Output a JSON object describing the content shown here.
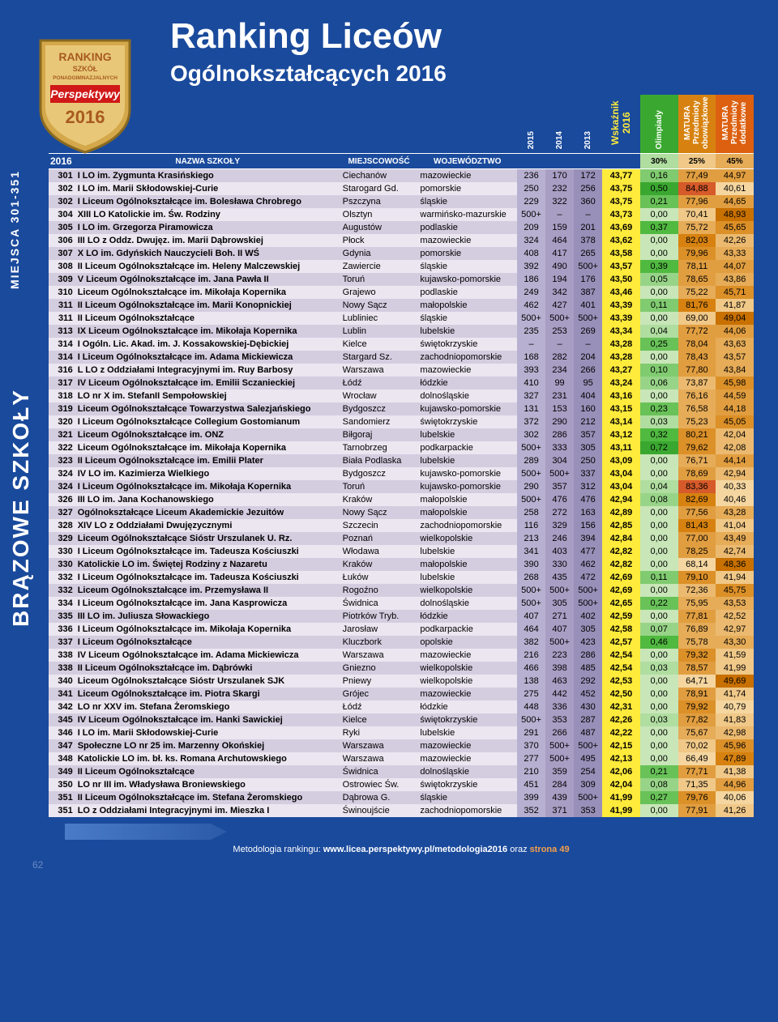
{
  "title": "Ranking Liceów",
  "subtitle": "Ogólnokształcących 2016",
  "sideLabel1": "MIEJSCA 301-351",
  "sideLabel2": "BRĄZOWE SZKOŁY",
  "badge": {
    "line1": "RANKING",
    "line2": "SZKÓŁ",
    "line3": "PONADGIMNAZJALNYCH",
    "brand": "Perspektywy",
    "year": "2016"
  },
  "footer": {
    "text": "Metodologia rankingu: ",
    "link": "www.licea.perspektywy.pl/metodologia2016",
    "tail": " oraz ",
    "page": "strona 49"
  },
  "pageNum": "62",
  "columns": {
    "year": "2016",
    "name": "NAZWA SZKOŁY",
    "city": "MIEJSCOWOŚĆ",
    "region": "WOJEWÓDZTWO",
    "y2015": "2015",
    "y2014": "2014",
    "y2013": "2013",
    "ws": "Wskaźnik 2016",
    "ol": "Olimpiady",
    "m1": "MATURA Przedmioty obowiązkowe",
    "m2": "MATURA Przedmioty dodatkowe",
    "olPct": "30%",
    "m1Pct": "25%",
    "m2Pct": "45%"
  },
  "colors": {
    "rowEven": "#d4cde0",
    "rowOdd": "#ebe6f0",
    "hist": [
      "#b8b0d0",
      "#a89ec4",
      "#9890b8"
    ],
    "ws": "#ffeb3b",
    "greenScale": [
      "#c8e6b8",
      "#b0dda0",
      "#98d488",
      "#80cb70",
      "#68c258",
      "#50b940",
      "#3aa830"
    ],
    "orangeScale": [
      "#f5d6a0",
      "#f0c888",
      "#ebba70",
      "#e6ac58",
      "#e19e40",
      "#dc9028",
      "#d78210",
      "#c87000"
    ],
    "redHigh": "#d65a2a"
  },
  "rows": [
    {
      "r": "301",
      "name": "I LO im. Zygmunta Krasińskiego",
      "city": "Ciechanów",
      "reg": "mazowieckie",
      "y15": "236",
      "y14": "170",
      "y13": "172",
      "ws": "43,77",
      "ol": "0,16",
      "m1": "77,49",
      "m2": "44,97"
    },
    {
      "r": "302",
      "name": "I LO im. Marii Skłodowskiej-Curie",
      "city": "Starogard Gd.",
      "reg": "pomorskie",
      "y15": "250",
      "y14": "232",
      "y13": "256",
      "ws": "43,75",
      "ol": "0,50",
      "m1": "84,88",
      "m2": "40,61"
    },
    {
      "r": "302",
      "name": "I Liceum Ogólnokształcące im. Bolesława Chrobrego",
      "city": "Pszczyna",
      "reg": "śląskie",
      "y15": "229",
      "y14": "322",
      "y13": "360",
      "ws": "43,75",
      "ol": "0,21",
      "m1": "77,96",
      "m2": "44,65"
    },
    {
      "r": "304",
      "name": "XIII LO Katolickie im. Św. Rodziny",
      "city": "Olsztyn",
      "reg": "warmińsko-mazurskie",
      "y15": "500+",
      "y14": "–",
      "y13": "–",
      "ws": "43,73",
      "ol": "0,00",
      "m1": "70,41",
      "m2": "48,93"
    },
    {
      "r": "305",
      "name": "I LO im. Grzegorza Piramowicza",
      "city": "Augustów",
      "reg": "podlaskie",
      "y15": "209",
      "y14": "159",
      "y13": "201",
      "ws": "43,69",
      "ol": "0,37",
      "m1": "75,72",
      "m2": "45,65"
    },
    {
      "r": "306",
      "name": "III LO z Oddz. Dwujęz. im. Marii Dąbrowskiej",
      "city": "Płock",
      "reg": "mazowieckie",
      "y15": "324",
      "y14": "464",
      "y13": "378",
      "ws": "43,62",
      "ol": "0,00",
      "m1": "82,03",
      "m2": "42,26"
    },
    {
      "r": "307",
      "name": "X LO im. Gdyńskich Nauczycieli Boh. II WŚ",
      "city": "Gdynia",
      "reg": "pomorskie",
      "y15": "408",
      "y14": "417",
      "y13": "265",
      "ws": "43,58",
      "ol": "0,00",
      "m1": "79,96",
      "m2": "43,33"
    },
    {
      "r": "308",
      "name": "II Liceum Ogólnokształcące im. Heleny Malczewskiej",
      "city": "Zawiercie",
      "reg": "śląskie",
      "y15": "392",
      "y14": "490",
      "y13": "500+",
      "ws": "43,57",
      "ol": "0,39",
      "m1": "78,11",
      "m2": "44,07"
    },
    {
      "r": "309",
      "name": "V Liceum Ogólnokształcące im. Jana Pawła II",
      "city": "Toruń",
      "reg": "kujawsko-pomorskie",
      "y15": "186",
      "y14": "194",
      "y13": "176",
      "ws": "43,50",
      "ol": "0,05",
      "m1": "78,65",
      "m2": "43,86"
    },
    {
      "r": "310",
      "name": "Liceum Ogólnokształcące im. Mikołaja Kopernika",
      "city": "Grajewo",
      "reg": "podlaskie",
      "y15": "249",
      "y14": "342",
      "y13": "387",
      "ws": "43,46",
      "ol": "0,00",
      "m1": "75,22",
      "m2": "45,71"
    },
    {
      "r": "311",
      "name": "II Liceum Ogólnokształcące im. Marii Konopnickiej",
      "city": "Nowy Sącz",
      "reg": "małopolskie",
      "y15": "462",
      "y14": "427",
      "y13": "401",
      "ws": "43,39",
      "ol": "0,11",
      "m1": "81,76",
      "m2": "41,87"
    },
    {
      "r": "311",
      "name": "II Liceum Ogólnokształcące",
      "city": "Lubliniec",
      "reg": "śląskie",
      "y15": "500+",
      "y14": "500+",
      "y13": "500+",
      "ws": "43,39",
      "ol": "0,00",
      "m1": "69,00",
      "m2": "49,04"
    },
    {
      "r": "313",
      "name": "IX Liceum Ogólnokształcące im. Mikołaja Kopernika",
      "city": "Lublin",
      "reg": "lubelskie",
      "y15": "235",
      "y14": "253",
      "y13": "269",
      "ws": "43,34",
      "ol": "0,04",
      "m1": "77,72",
      "m2": "44,06"
    },
    {
      "r": "314",
      "name": "I Ogóln. Lic. Akad. im. J. Kossakowskiej-Dębickiej",
      "city": "Kielce",
      "reg": "świętokrzyskie",
      "y15": "–",
      "y14": "–",
      "y13": "–",
      "ws": "43,28",
      "ol": "0,25",
      "m1": "78,04",
      "m2": "43,63"
    },
    {
      "r": "314",
      "name": "I Liceum Ogólnokształcące im. Adama Mickiewicza",
      "city": "Stargard Sz.",
      "reg": "zachodniopomorskie",
      "y15": "168",
      "y14": "282",
      "y13": "204",
      "ws": "43,28",
      "ol": "0,00",
      "m1": "78,43",
      "m2": "43,57"
    },
    {
      "r": "316",
      "name": "L LO z Oddziałami Integracyjnymi im. Ruy Barbosy",
      "city": "Warszawa",
      "reg": "mazowieckie",
      "y15": "393",
      "y14": "234",
      "y13": "266",
      "ws": "43,27",
      "ol": "0,10",
      "m1": "77,80",
      "m2": "43,84"
    },
    {
      "r": "317",
      "name": "IV Liceum Ogólnokształcące im. Emilii Sczanieckiej",
      "city": "Łódź",
      "reg": "łódzkie",
      "y15": "410",
      "y14": "99",
      "y13": "95",
      "ws": "43,24",
      "ol": "0,06",
      "m1": "73,87",
      "m2": "45,98"
    },
    {
      "r": "318",
      "name": "LO nr X im. StefanII Sempołowskiej",
      "city": "Wrocław",
      "reg": "dolnośląskie",
      "y15": "327",
      "y14": "231",
      "y13": "404",
      "ws": "43,16",
      "ol": "0,00",
      "m1": "76,16",
      "m2": "44,59"
    },
    {
      "r": "319",
      "name": "Liceum Ogólnokształcące Towarzystwa Salezjańskiego",
      "city": "Bydgoszcz",
      "reg": "kujawsko-pomorskie",
      "y15": "131",
      "y14": "153",
      "y13": "160",
      "ws": "43,15",
      "ol": "0,23",
      "m1": "76,58",
      "m2": "44,18"
    },
    {
      "r": "320",
      "name": "I Liceum Ogólnokształcące Collegium Gostomianum",
      "city": "Sandomierz",
      "reg": "świętokrzyskie",
      "y15": "372",
      "y14": "290",
      "y13": "212",
      "ws": "43,14",
      "ol": "0,03",
      "m1": "75,23",
      "m2": "45,05"
    },
    {
      "r": "321",
      "name": "Liceum Ogólnokształcące im. ONZ",
      "city": "Biłgoraj",
      "reg": "lubelskie",
      "y15": "302",
      "y14": "286",
      "y13": "357",
      "ws": "43,12",
      "ol": "0,32",
      "m1": "80,21",
      "m2": "42,04"
    },
    {
      "r": "322",
      "name": "Liceum Ogólnokształcące im. Mikołaja Kopernika",
      "city": "Tarnobrzeg",
      "reg": "podkarpackie",
      "y15": "500+",
      "y14": "333",
      "y13": "305",
      "ws": "43,11",
      "ol": "0,72",
      "m1": "79,62",
      "m2": "42,08"
    },
    {
      "r": "323",
      "name": "II Liceum Ogólnokształcące im. Emilii Plater",
      "city": "Biała Podlaska",
      "reg": "lubelskie",
      "y15": "289",
      "y14": "304",
      "y13": "250",
      "ws": "43,09",
      "ol": "0,00",
      "m1": "76,71",
      "m2": "44,14"
    },
    {
      "r": "324",
      "name": "IV LO im. Kazimierza Wielkiego",
      "city": "Bydgoszcz",
      "reg": "kujawsko-pomorskie",
      "y15": "500+",
      "y14": "500+",
      "y13": "337",
      "ws": "43,04",
      "ol": "0,00",
      "m1": "78,69",
      "m2": "42,94"
    },
    {
      "r": "324",
      "name": "I Liceum Ogólnokształcące im. Mikołaja Kopernika",
      "city": "Toruń",
      "reg": "kujawsko-pomorskie",
      "y15": "290",
      "y14": "357",
      "y13": "312",
      "ws": "43,04",
      "ol": "0,04",
      "m1": "83,36",
      "m2": "40,33"
    },
    {
      "r": "326",
      "name": "III LO im. Jana Kochanowskiego",
      "city": "Kraków",
      "reg": "małopolskie",
      "y15": "500+",
      "y14": "476",
      "y13": "476",
      "ws": "42,94",
      "ol": "0,08",
      "m1": "82,69",
      "m2": "40,46"
    },
    {
      "r": "327",
      "name": "Ogólnokształcące Liceum Akademickie Jezuitów",
      "city": "Nowy Sącz",
      "reg": "małopolskie",
      "y15": "258",
      "y14": "272",
      "y13": "163",
      "ws": "42,89",
      "ol": "0,00",
      "m1": "77,56",
      "m2": "43,28"
    },
    {
      "r": "328",
      "name": "XIV LO z Oddziałami Dwujęzycznymi",
      "city": "Szczecin",
      "reg": "zachodniopomorskie",
      "y15": "116",
      "y14": "329",
      "y13": "156",
      "ws": "42,85",
      "ol": "0,00",
      "m1": "81,43",
      "m2": "41,04"
    },
    {
      "r": "329",
      "name": "Liceum Ogólnokształcące Sióstr Urszulanek U. Rz.",
      "city": "Poznań",
      "reg": "wielkopolskie",
      "y15": "213",
      "y14": "246",
      "y13": "394",
      "ws": "42,84",
      "ol": "0,00",
      "m1": "77,00",
      "m2": "43,49"
    },
    {
      "r": "330",
      "name": "I Liceum Ogólnokształcące im. Tadeusza Kościuszki",
      "city": "Włodawa",
      "reg": "lubelskie",
      "y15": "341",
      "y14": "403",
      "y13": "477",
      "ws": "42,82",
      "ol": "0,00",
      "m1": "78,25",
      "m2": "42,74"
    },
    {
      "r": "330",
      "name": "Katolickie LO im. Świętej Rodziny z Nazaretu",
      "city": "Kraków",
      "reg": "małopolskie",
      "y15": "390",
      "y14": "330",
      "y13": "462",
      "ws": "42,82",
      "ol": "0,00",
      "m1": "68,14",
      "m2": "48,36"
    },
    {
      "r": "332",
      "name": "I Liceum Ogólnokształcące im. Tadeusza Kościuszki",
      "city": "Łuków",
      "reg": "lubelskie",
      "y15": "268",
      "y14": "435",
      "y13": "472",
      "ws": "42,69",
      "ol": "0,11",
      "m1": "79,10",
      "m2": "41,94"
    },
    {
      "r": "332",
      "name": "Liceum Ogólnokształcące im. Przemysława II",
      "city": "Rogoźno",
      "reg": "wielkopolskie",
      "y15": "500+",
      "y14": "500+",
      "y13": "500+",
      "ws": "42,69",
      "ol": "0,00",
      "m1": "72,36",
      "m2": "45,75"
    },
    {
      "r": "334",
      "name": "I Liceum Ogólnokształcące im. Jana Kasprowicza",
      "city": "Świdnica",
      "reg": "dolnośląskie",
      "y15": "500+",
      "y14": "305",
      "y13": "500+",
      "ws": "42,65",
      "ol": "0,22",
      "m1": "75,95",
      "m2": "43,53"
    },
    {
      "r": "335",
      "name": "III LO im. Juliusza Słowackiego",
      "city": "Piotrków Tryb.",
      "reg": "łódzkie",
      "y15": "407",
      "y14": "271",
      "y13": "402",
      "ws": "42,59",
      "ol": "0,00",
      "m1": "77,81",
      "m2": "42,52"
    },
    {
      "r": "336",
      "name": "I Liceum Ogólnokształcące im. Mikołaja Kopernika",
      "city": "Jarosław",
      "reg": "podkarpackie",
      "y15": "464",
      "y14": "407",
      "y13": "305",
      "ws": "42,58",
      "ol": "0,07",
      "m1": "76,89",
      "m2": "42,97"
    },
    {
      "r": "337",
      "name": "I Liceum Ogólnokształcące",
      "city": "Kluczbork",
      "reg": "opolskie",
      "y15": "382",
      "y14": "500+",
      "y13": "423",
      "ws": "42,57",
      "ol": "0,46",
      "m1": "75,78",
      "m2": "43,30"
    },
    {
      "r": "338",
      "name": "IV Liceum Ogólnokształcące im. Adama Mickiewicza",
      "city": "Warszawa",
      "reg": "mazowieckie",
      "y15": "216",
      "y14": "223",
      "y13": "286",
      "ws": "42,54",
      "ol": "0,00",
      "m1": "79,32",
      "m2": "41,59"
    },
    {
      "r": "338",
      "name": "II Liceum Ogólnokształcące im. Dąbrówki",
      "city": "Gniezno",
      "reg": "wielkopolskie",
      "y15": "466",
      "y14": "398",
      "y13": "485",
      "ws": "42,54",
      "ol": "0,03",
      "m1": "78,57",
      "m2": "41,99"
    },
    {
      "r": "340",
      "name": "Liceum Ogólnokształcące Sióstr Urszulanek SJK",
      "city": "Pniewy",
      "reg": "wielkopolskie",
      "y15": "138",
      "y14": "463",
      "y13": "292",
      "ws": "42,53",
      "ol": "0,00",
      "m1": "64,71",
      "m2": "49,69"
    },
    {
      "r": "341",
      "name": "Liceum Ogólnokształcące im. Piotra Skargi",
      "city": "Grójec",
      "reg": "mazowieckie",
      "y15": "275",
      "y14": "442",
      "y13": "452",
      "ws": "42,50",
      "ol": "0,00",
      "m1": "78,91",
      "m2": "41,74"
    },
    {
      "r": "342",
      "name": "LO nr XXV im. Stefana Żeromskiego",
      "city": "Łódź",
      "reg": "łódzkie",
      "y15": "448",
      "y14": "336",
      "y13": "430",
      "ws": "42,31",
      "ol": "0,00",
      "m1": "79,92",
      "m2": "40,79"
    },
    {
      "r": "345",
      "name": "IV Liceum Ogólnokształcące im. Hanki Sawickiej",
      "city": "Kielce",
      "reg": "świętokrzyskie",
      "y15": "500+",
      "y14": "353",
      "y13": "287",
      "ws": "42,26",
      "ol": "0,03",
      "m1": "77,82",
      "m2": "41,83"
    },
    {
      "r": "346",
      "name": "I LO im. Marii Skłodowskiej-Curie",
      "city": "Ryki",
      "reg": "lubelskie",
      "y15": "291",
      "y14": "266",
      "y13": "487",
      "ws": "42,22",
      "ol": "0,00",
      "m1": "75,67",
      "m2": "42,98"
    },
    {
      "r": "347",
      "name": "Społeczne LO nr 25 im. Marzenny Okońskiej",
      "city": "Warszawa",
      "reg": "mazowieckie",
      "y15": "370",
      "y14": "500+",
      "y13": "500+",
      "ws": "42,15",
      "ol": "0,00",
      "m1": "70,02",
      "m2": "45,96"
    },
    {
      "r": "348",
      "name": "Katolickie LO im. bł. ks. Romana Archutowskiego",
      "city": "Warszawa",
      "reg": "mazowieckie",
      "y15": "277",
      "y14": "500+",
      "y13": "495",
      "ws": "42,13",
      "ol": "0,00",
      "m1": "66,49",
      "m2": "47,89"
    },
    {
      "r": "349",
      "name": "II Liceum Ogólnokształcące",
      "city": "Świdnica",
      "reg": "dolnośląskie",
      "y15": "210",
      "y14": "359",
      "y13": "254",
      "ws": "42,06",
      "ol": "0,21",
      "m1": "77,71",
      "m2": "41,38"
    },
    {
      "r": "350",
      "name": "LO nr III im. Władysława Broniewskiego",
      "city": "Ostrowiec Św.",
      "reg": "świętokrzyskie",
      "y15": "451",
      "y14": "284",
      "y13": "309",
      "ws": "42,04",
      "ol": "0,08",
      "m1": "71,35",
      "m2": "44,96"
    },
    {
      "r": "351",
      "name": "II Liceum Ogólnokształcące im. Stefana Żeromskiego",
      "city": "Dąbrowa G.",
      "reg": "śląskie",
      "y15": "399",
      "y14": "439",
      "y13": "500+",
      "ws": "41,99",
      "ol": "0,27",
      "m1": "79,76",
      "m2": "40,06"
    },
    {
      "r": "351",
      "name": "LO z Oddziałami Integracyjnymi im. Mieszka I",
      "city": "Świnoujście",
      "reg": "zachodniopomorskie",
      "y15": "352",
      "y14": "371",
      "y13": "353",
      "ws": "41,99",
      "ol": "0,00",
      "m1": "77,91",
      "m2": "41,26"
    }
  ]
}
